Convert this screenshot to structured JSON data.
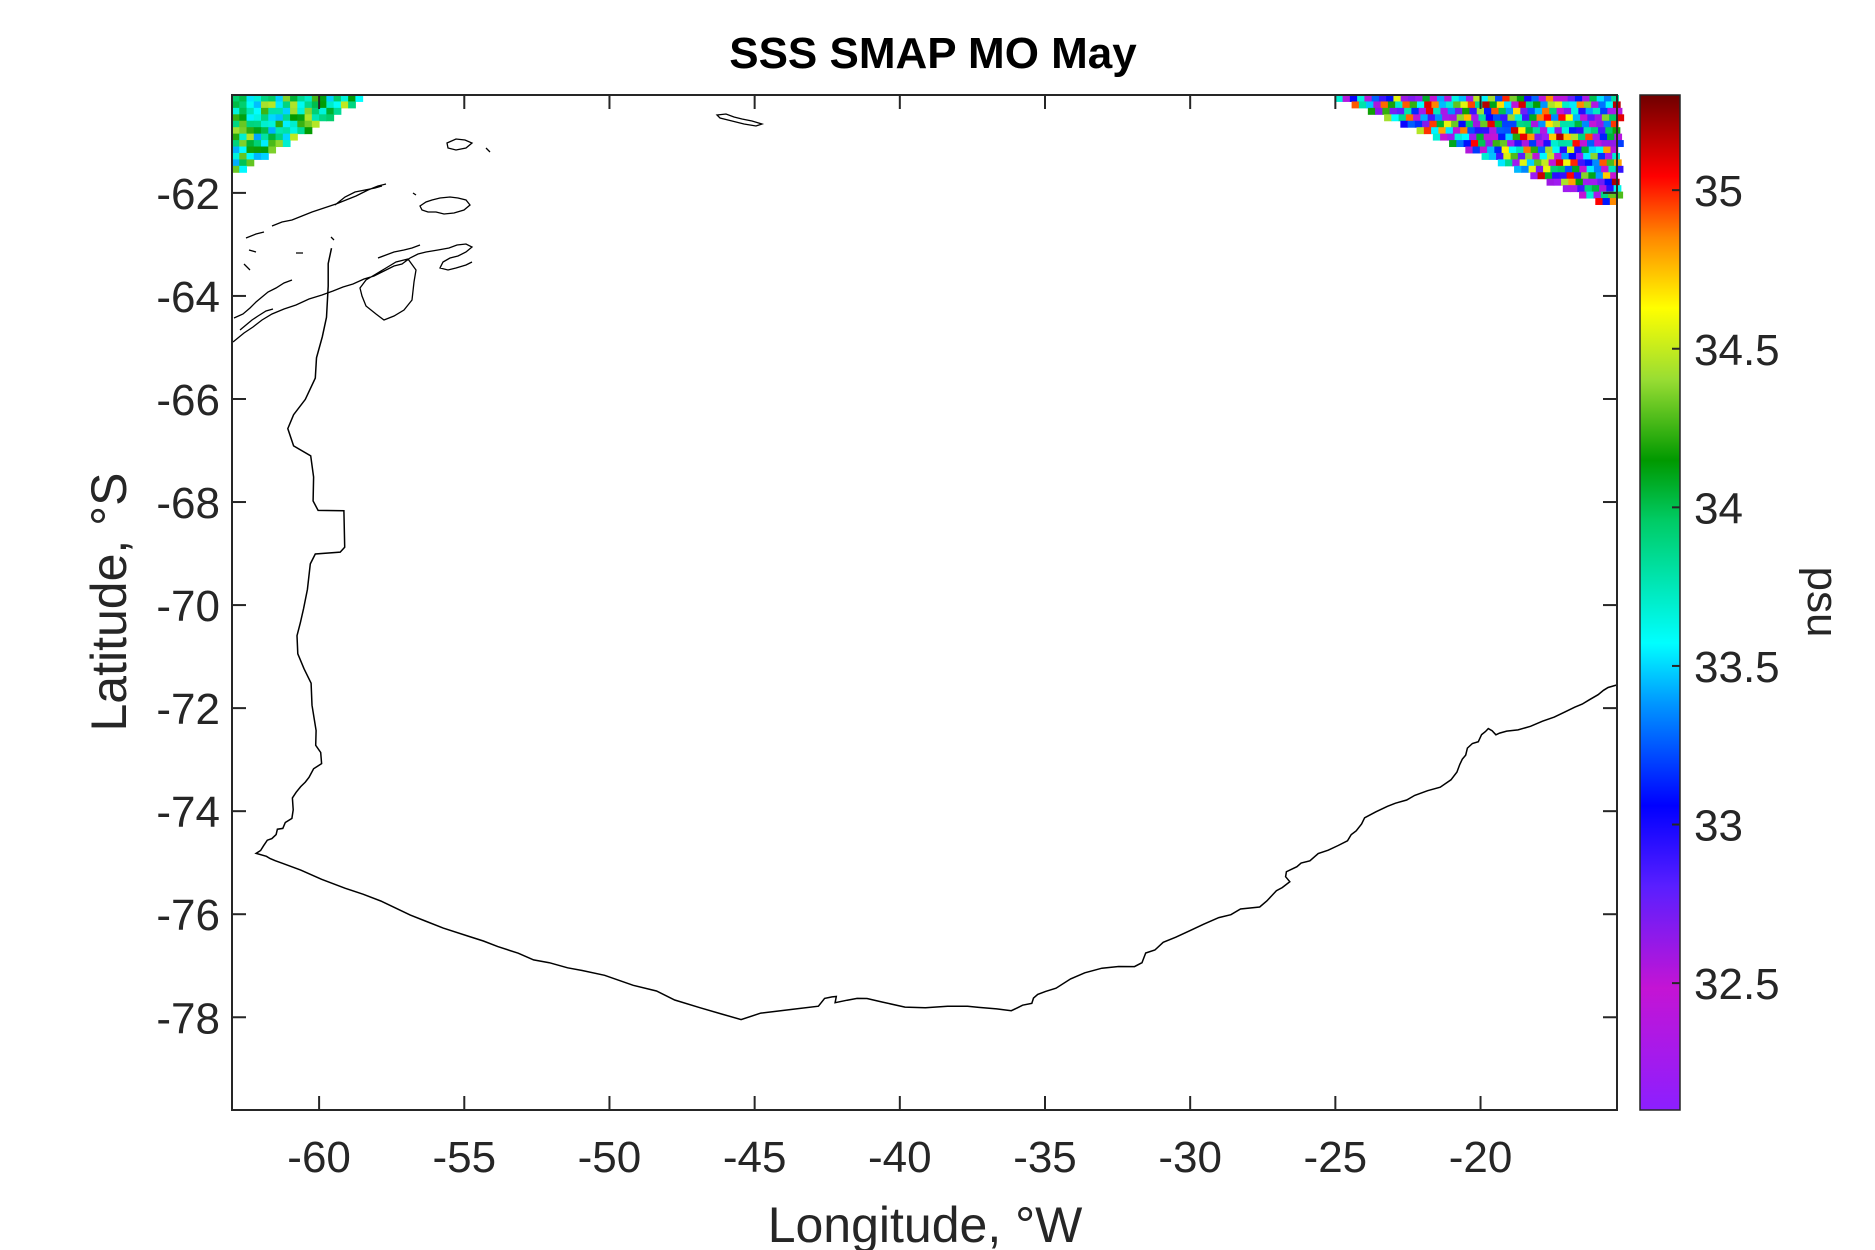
{
  "chart_data": {
    "type": "heatmap",
    "title": "SSS SMAP MO May",
    "xlabel": "Longitude, °W",
    "ylabel": "Latitude, °S",
    "xlim": [
      -63,
      -15.3
    ],
    "ylim": [
      -79.8,
      -60.1
    ],
    "xticks": [
      -60,
      -55,
      -50,
      -45,
      -40,
      -35,
      -30,
      -25,
      -20
    ],
    "xtick_labels": [
      "-60",
      "-55",
      "-50",
      "-45",
      "-40",
      "-35",
      "-30",
      "-25",
      "-20"
    ],
    "yticks": [
      -62,
      -64,
      -66,
      -68,
      -70,
      -72,
      -74,
      -76,
      -78
    ],
    "ytick_labels": [
      "-62",
      "-64",
      "-66",
      "-68",
      "-70",
      "-72",
      "-74",
      "-76",
      "-78"
    ],
    "grid": false,
    "colorbar": {
      "label": "psu",
      "range": [
        32.1,
        35.3
      ],
      "ticks": [
        32.5,
        33,
        33.5,
        34,
        34.5,
        35
      ],
      "tick_labels": [
        "32.5",
        "33",
        "33.5",
        "34",
        "34.5",
        "35"
      ],
      "colormap": "jet-like (purple to dark red)",
      "position": "right"
    },
    "data_regions": [
      {
        "name": "",
        "lon_range": [
          -63,
          -58.5
        ],
        "lat_range": [
          -61.6,
          -60.1
        ],
        "value_range": [
          33.4,
          34.5
        ]
      },
      {
        "name": "",
        "lon_range": [
          -25,
          -15.3
        ],
        "lat_range": [
          -62.2,
          -60.1
        ],
        "value_range": [
          32.2,
          35.2
        ]
      }
    ],
    "coastline": "Antarctic coastline (Weddell Sea region)"
  }
}
